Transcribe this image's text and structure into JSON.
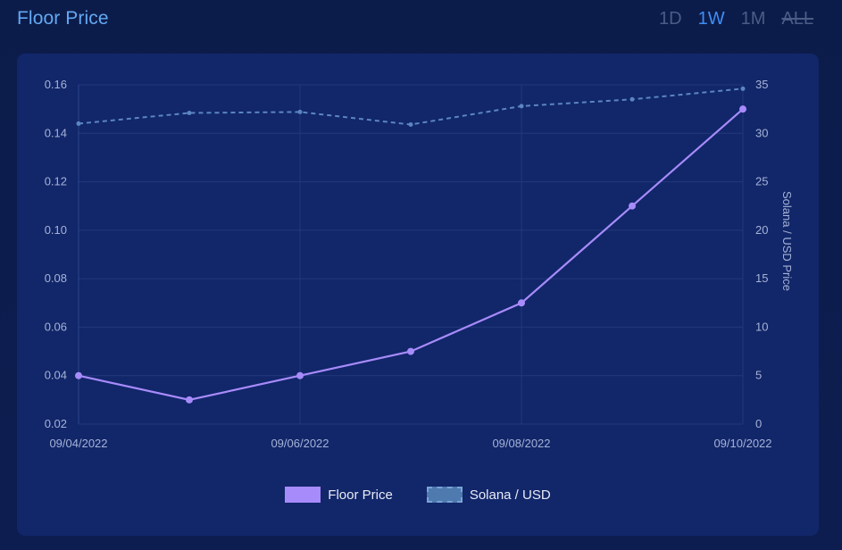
{
  "header": {
    "title": "Floor Price",
    "ranges": [
      {
        "label": "1D",
        "active": false
      },
      {
        "label": "1W",
        "active": true
      },
      {
        "label": "1M",
        "active": false
      },
      {
        "label": "ALL",
        "active": false
      }
    ]
  },
  "colors": {
    "floor_price": "#a78bfa",
    "solana_usd": "#5b86c0",
    "accent": "#3f8ef5"
  },
  "chart_data": {
    "type": "line",
    "title": "",
    "x": [
      "09/04/2022",
      "09/05/2022",
      "09/06/2022",
      "09/07/2022",
      "09/08/2022",
      "09/09/2022",
      "09/10/2022"
    ],
    "x_tick_labels": [
      "09/04/2022",
      "09/06/2022",
      "09/08/2022",
      "09/10/2022"
    ],
    "y_left": {
      "label": "",
      "range": [
        0.02,
        0.16
      ],
      "ticks": [
        "0.16",
        "0.14",
        "0.12",
        "0.10",
        "0.08",
        "0.06",
        "0.04",
        "0.02"
      ]
    },
    "y_right": {
      "label": "Solana / USD Price",
      "range": [
        0,
        35
      ],
      "ticks": [
        "35",
        "30",
        "25",
        "20",
        "15",
        "10",
        "5",
        "0"
      ]
    },
    "series": [
      {
        "name": "Floor Price",
        "axis": "left",
        "style": "solid",
        "values": [
          0.04,
          0.03,
          0.04,
          0.05,
          0.07,
          0.11,
          0.15
        ]
      },
      {
        "name": "Solana / USD",
        "axis": "right",
        "style": "dashed",
        "values": [
          31.0,
          32.1,
          32.2,
          30.9,
          32.8,
          33.5,
          34.6
        ]
      }
    ],
    "grid": true,
    "legend_position": "bottom-center"
  }
}
